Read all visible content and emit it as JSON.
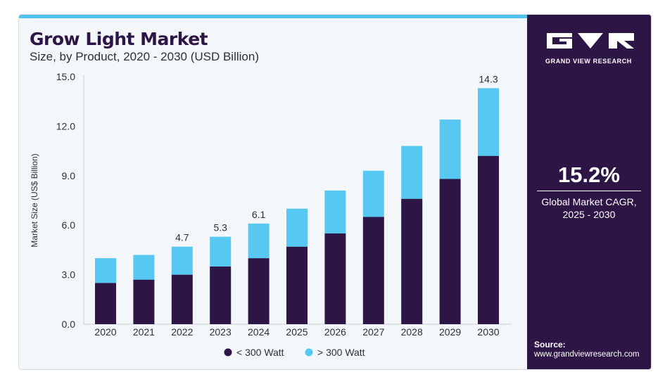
{
  "header": {
    "title": "Grow Light Market",
    "subtitle": "Size, by Product, 2020 - 2030 (USD Billion)"
  },
  "sidebar": {
    "logo_text": "GRAND VIEW RESEARCH",
    "cagr_value": "15.2%",
    "cagr_label_1": "Global Market CAGR,",
    "cagr_label_2": "2025 - 2030",
    "source_label": "Source:",
    "source_url": "www.grandviewresearch.com"
  },
  "colors": {
    "series_1": "#2d1646",
    "series_2": "#57c8f2",
    "sidebar_bg": "#2d1646",
    "accent": "#4fc3ec"
  },
  "chart_data": {
    "type": "bar",
    "stacked": true,
    "title": "Grow Light Market",
    "subtitle": "Size, by Product, 2020 - 2030 (USD Billion)",
    "xlabel": "",
    "ylabel": "Market Size (US$ Billion)",
    "ylim": [
      0,
      15
    ],
    "yticks": [
      "0.0",
      "3.0",
      "6.0",
      "9.0",
      "12.0",
      "15.0"
    ],
    "categories": [
      "2020",
      "2021",
      "2022",
      "2023",
      "2024",
      "2025",
      "2026",
      "2027",
      "2028",
      "2029",
      "2030"
    ],
    "series": [
      {
        "name": "< 300 Watt",
        "values": [
          2.5,
          2.7,
          3.0,
          3.5,
          4.0,
          4.7,
          5.5,
          6.5,
          7.6,
          8.8,
          10.2
        ]
      },
      {
        "name": "> 300 Watt",
        "values": [
          1.5,
          1.5,
          1.7,
          1.8,
          2.1,
          2.3,
          2.6,
          2.8,
          3.2,
          3.6,
          4.1
        ]
      }
    ],
    "data_labels": [
      "",
      "",
      "4.7",
      "5.3",
      "6.1",
      "",
      "",
      "",
      "",
      "",
      "14.3"
    ],
    "legend_position": "bottom",
    "grid": false
  }
}
